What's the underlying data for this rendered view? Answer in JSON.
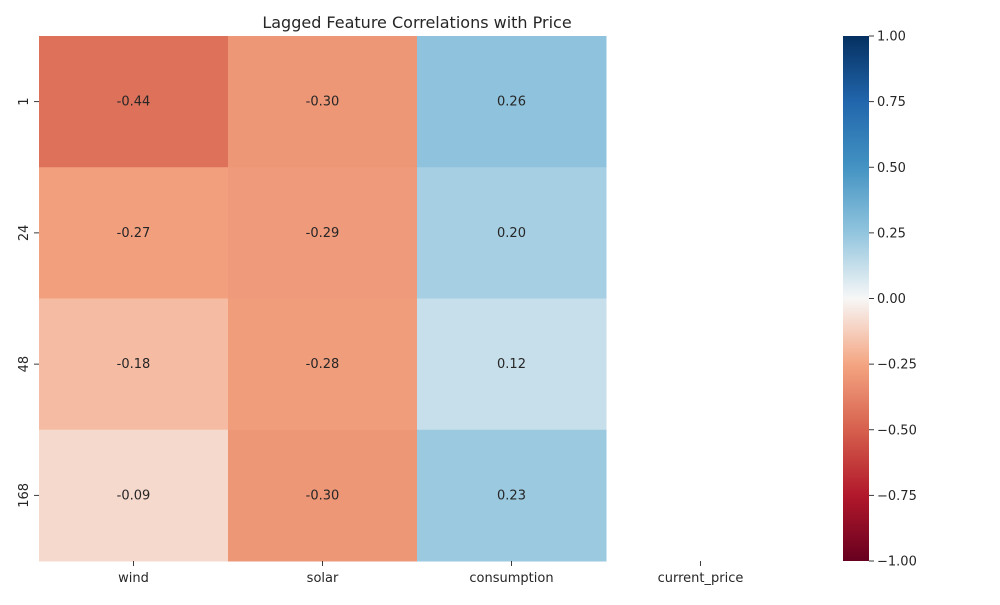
{
  "chart_data": {
    "type": "heatmap",
    "title": "Lagged Feature Correlations with Price",
    "xlabel": "",
    "ylabel": "",
    "columns": [
      "wind",
      "solar",
      "consumption",
      "current_price"
    ],
    "rows": [
      "1",
      "24",
      "48",
      "168"
    ],
    "values": [
      [
        -0.44,
        -0.3,
        0.26,
        null
      ],
      [
        -0.27,
        -0.29,
        0.2,
        null
      ],
      [
        -0.18,
        -0.28,
        0.12,
        null
      ],
      [
        -0.09,
        -0.3,
        0.23,
        null
      ]
    ],
    "value_labels": [
      [
        "-0.44",
        "-0.30",
        "0.26",
        ""
      ],
      [
        "-0.27",
        "-0.29",
        "0.20",
        ""
      ],
      [
        "-0.18",
        "-0.28",
        "0.12",
        ""
      ],
      [
        "-0.09",
        "-0.30",
        "0.23",
        ""
      ]
    ],
    "colormap": "RdBu",
    "colorbar": {
      "vmin": -1.0,
      "vmax": 1.0,
      "ticks": [
        1.0,
        0.75,
        0.5,
        0.25,
        0.0,
        -0.25,
        -0.5,
        -0.75,
        -1.0
      ],
      "tick_labels": [
        "1.00",
        "0.75",
        "0.50",
        "0.25",
        "0.00",
        "−0.25",
        "−0.50",
        "−0.75",
        "−1.00"
      ]
    },
    "grid": false
  }
}
